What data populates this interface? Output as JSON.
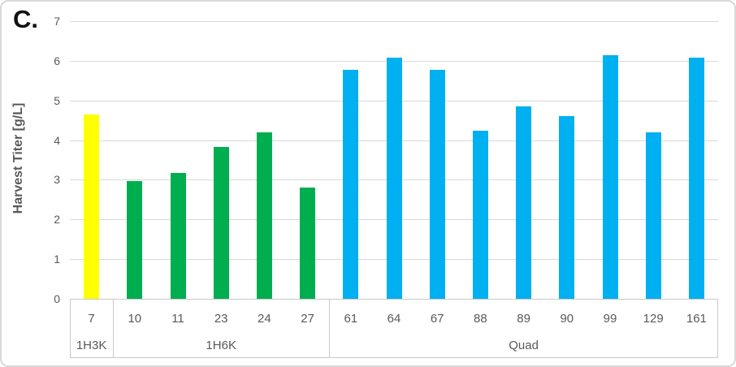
{
  "panel_label": "C.",
  "chart_data": {
    "type": "bar",
    "title": "",
    "panel_label": "C.",
    "xlabel": "",
    "ylabel": "Harvest Titer [g/L]",
    "ylim": [
      0,
      7
    ],
    "yticks": [
      0,
      1,
      2,
      3,
      4,
      5,
      6,
      7
    ],
    "grid": "horizontal",
    "legend": "none",
    "categories": [
      "7",
      "10",
      "11",
      "23",
      "24",
      "27",
      "61",
      "64",
      "67",
      "88",
      "89",
      "90",
      "99",
      "129",
      "161"
    ],
    "values": [
      4.64,
      2.97,
      3.18,
      3.83,
      4.19,
      2.8,
      5.78,
      6.07,
      5.78,
      4.23,
      4.86,
      4.6,
      6.15,
      4.2,
      6.07
    ],
    "groups": [
      {
        "label": "1H3K",
        "color": "#FFFF00",
        "categories": [
          "7"
        ],
        "values": [
          4.64
        ]
      },
      {
        "label": "1H6K",
        "color": "#00AE50",
        "categories": [
          "10",
          "11",
          "23",
          "24",
          "27"
        ],
        "values": [
          2.97,
          3.18,
          3.83,
          4.19,
          2.8
        ]
      },
      {
        "label": "Quad",
        "color": "#00B0F0",
        "categories": [
          "61",
          "64",
          "67",
          "88",
          "89",
          "90",
          "99",
          "129",
          "161"
        ],
        "values": [
          5.78,
          6.07,
          5.78,
          4.23,
          4.86,
          4.6,
          6.15,
          4.2,
          6.07
        ]
      }
    ],
    "colors": {
      "axis_text": "#595959",
      "gridline": "#D9D9D9",
      "axis_border": "#C9C9C9",
      "panel_border": "#D9D9D9"
    }
  }
}
